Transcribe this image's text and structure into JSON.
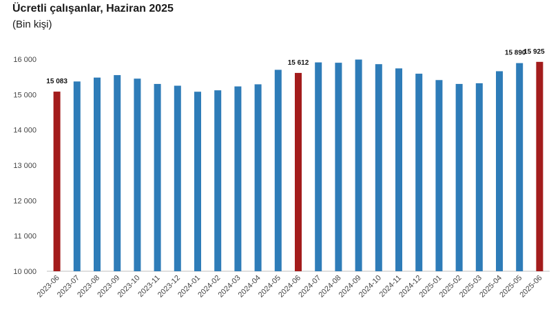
{
  "header": {
    "title": "Ücretli çalışanlar, Haziran 2025",
    "subtitle": "(Bin kişi)"
  },
  "colors": {
    "normal": "#2e7cb8",
    "highlight": "#a31c1c",
    "axis": "#bfbfbf"
  },
  "chart_data": {
    "type": "bar",
    "title": "Ücretli çalışanlar, Haziran 2025",
    "subtitle": "(Bin kişi)",
    "xlabel": "",
    "ylabel": "",
    "ylim": [
      10000,
      16000
    ],
    "yticks": [
      10000,
      11000,
      12000,
      13000,
      14000,
      15000,
      16000
    ],
    "ytick_labels": [
      "10 000",
      "11 000",
      "12 000",
      "13 000",
      "14 000",
      "15 000",
      "16 000"
    ],
    "grid": false,
    "categories": [
      "2023-06",
      "2023-07",
      "2023-08",
      "2023-09",
      "2023-10",
      "2023-11",
      "2023-12",
      "2024-01",
      "2024-02",
      "2024-03",
      "2024-04",
      "2024-05",
      "2024-06",
      "2024-07",
      "2024-08",
      "2024-09",
      "2024-10",
      "2024-11",
      "2024-12",
      "2025-01",
      "2025-02",
      "2025-03",
      "2025-04",
      "2025-05",
      "2025-06"
    ],
    "values": [
      15083,
      15370,
      15480,
      15550,
      15450,
      15300,
      15250,
      15080,
      15120,
      15230,
      15290,
      15700,
      15612,
      15910,
      15900,
      15990,
      15860,
      15740,
      15590,
      15410,
      15300,
      15320,
      15660,
      15890,
      15925
    ],
    "highlighted": [
      "2023-06",
      "2024-06",
      "2025-06"
    ],
    "data_labels": [
      {
        "category": "2023-06",
        "text": "15 083"
      },
      {
        "category": "2024-06",
        "text": "15 612"
      },
      {
        "category": "2025-05",
        "text": "15 890"
      },
      {
        "category": "2025-06",
        "text": "15 925"
      }
    ]
  }
}
